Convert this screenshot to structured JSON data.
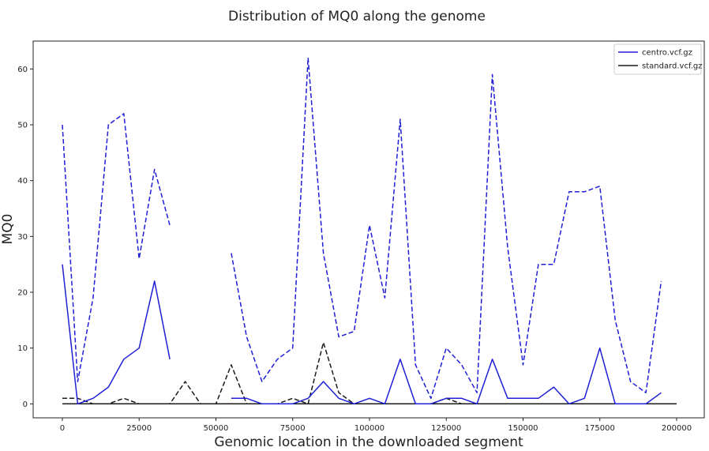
{
  "chart_data": {
    "type": "line",
    "title": "Distribution of MQ0 along the genome",
    "xlabel": "Genomic location in the downloaded segment",
    "ylabel": "MQ0",
    "xlim": [
      -9500,
      209000
    ],
    "ylim": [
      -2.5,
      65
    ],
    "x_ticks": [
      0,
      25000,
      50000,
      75000,
      100000,
      125000,
      150000,
      175000,
      200000
    ],
    "y_ticks": [
      0,
      10,
      20,
      30,
      40,
      50,
      60
    ],
    "grid": false,
    "legend_position": "top-right",
    "colors": {
      "centro": "#1f1fd6",
      "standard": "#1a1a1a"
    },
    "x": [
      0,
      5000,
      10000,
      15000,
      20000,
      25000,
      30000,
      35000,
      40000,
      45000,
      50000,
      55000,
      60000,
      65000,
      70000,
      75000,
      80000,
      85000,
      90000,
      95000,
      100000,
      105000,
      110000,
      115000,
      120000,
      125000,
      130000,
      135000,
      140000,
      145000,
      150000,
      155000,
      160000,
      165000,
      170000,
      175000,
      180000,
      185000,
      190000,
      195000,
      200000
    ],
    "series": [
      {
        "name": "centro.vcf.gz",
        "style": "solid",
        "color_key": "centro",
        "values": [
          25,
          0,
          1,
          3,
          8,
          10,
          22,
          8,
          null,
          null,
          null,
          1,
          1,
          0,
          0,
          0,
          1,
          4,
          1,
          0,
          1,
          0,
          8,
          0,
          0,
          1,
          1,
          0,
          8,
          1,
          1,
          1,
          3,
          0,
          1,
          10,
          0,
          0,
          0,
          2,
          null
        ]
      },
      {
        "name": "standard.vcf.gz",
        "style": "solid",
        "color_key": "standard",
        "values": [
          0,
          0,
          0,
          0,
          0,
          0,
          0,
          0,
          0,
          0,
          0,
          0,
          0,
          0,
          0,
          0,
          0,
          0,
          0,
          0,
          0,
          0,
          0,
          0,
          0,
          0,
          0,
          0,
          0,
          0,
          0,
          0,
          0,
          0,
          0,
          0,
          0,
          0,
          0,
          0,
          0
        ]
      },
      {
        "style": "dashed",
        "color_key": "centro",
        "values": [
          50,
          4,
          19,
          50,
          52,
          26,
          42,
          32,
          null,
          null,
          null,
          27,
          12,
          4,
          8,
          10,
          62,
          27,
          12,
          13,
          32,
          19,
          51,
          7,
          1,
          10,
          7,
          2,
          59,
          28,
          7,
          25,
          25,
          38,
          38,
          39,
          15,
          4,
          2,
          22,
          null
        ]
      },
      {
        "style": "dashed",
        "color_key": "standard",
        "values": [
          1,
          1,
          0,
          0,
          1,
          0,
          0,
          0,
          4,
          0,
          0,
          7,
          0,
          0,
          0,
          1,
          0,
          11,
          2,
          0,
          0,
          0,
          0,
          0,
          0,
          1,
          0,
          0,
          0,
          0,
          0,
          0,
          0,
          0,
          0,
          0,
          0,
          0,
          0,
          0,
          0
        ]
      }
    ]
  }
}
